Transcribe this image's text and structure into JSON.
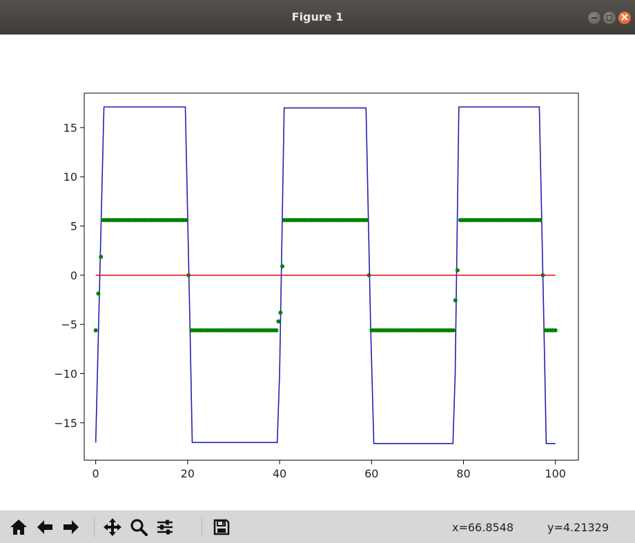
{
  "window": {
    "title": "Figure 1"
  },
  "chart_data": {
    "type": "line",
    "xlim": [
      -2.5,
      105
    ],
    "ylim": [
      -18.8,
      18.5
    ],
    "xticks": [
      0,
      20,
      40,
      60,
      80,
      100
    ],
    "xtick_labels": [
      "0",
      "20",
      "40",
      "60",
      "80",
      "100"
    ],
    "yticks": [
      15,
      10,
      5,
      0,
      -5,
      -10,
      -15
    ],
    "ytick_labels": [
      "15",
      "10",
      "5",
      "0",
      "−5",
      "−10",
      "−15"
    ],
    "grid": false,
    "colors": {
      "blue": "#1f1fb4",
      "green": "#008000",
      "red": "#e31a1c"
    },
    "series": [
      {
        "style": "line",
        "color": "#1f1fb4",
        "x": [
          0,
          1.8,
          19.5,
          20.5,
          21,
          39.5,
          40,
          41,
          58.8,
          59.8,
          60.5,
          77.7,
          78.2,
          79,
          96.5,
          97.5,
          98,
          100
        ],
        "y": [
          -17,
          17.1,
          17.1,
          -5,
          -17,
          -17,
          -10,
          17,
          17,
          -5,
          -17.1,
          -17.1,
          -10,
          17.1,
          17.1,
          -5,
          -17.1,
          -17.1
        ]
      },
      {
        "style": "dots",
        "color": "#008000",
        "x": [
          0,
          1.7,
          19.6,
          20.8,
          39.3,
          40.2,
          41,
          58.9,
          60,
          77.8,
          78.7,
          79.3,
          96.7,
          97.8,
          100
        ],
        "y": [
          -5.6,
          5.6,
          5.6,
          -5.6,
          -5.6,
          -3.8,
          5.6,
          5.6,
          -5.6,
          -5.6,
          0.5,
          5.6,
          5.6,
          -5.6,
          -5.6
        ]
      },
      {
        "style": "line",
        "color": "#e31a1c",
        "x": [
          0,
          100
        ],
        "y": [
          0,
          0
        ]
      }
    ]
  },
  "toolbar": {
    "buttons": [
      {
        "name": "home-button",
        "icon": "home-icon"
      },
      {
        "name": "back-button",
        "icon": "arrow-left-icon"
      },
      {
        "name": "forward-button",
        "icon": "arrow-right-icon"
      },
      {
        "name": "pan-button",
        "icon": "move-icon"
      },
      {
        "name": "zoom-button",
        "icon": "magnifier-icon"
      },
      {
        "name": "configure-subplots-button",
        "icon": "sliders-icon"
      },
      {
        "name": "save-button",
        "icon": "floppy-disk-icon"
      }
    ],
    "coord_x": "x=66.8548",
    "coord_y": "y=4.21329"
  }
}
